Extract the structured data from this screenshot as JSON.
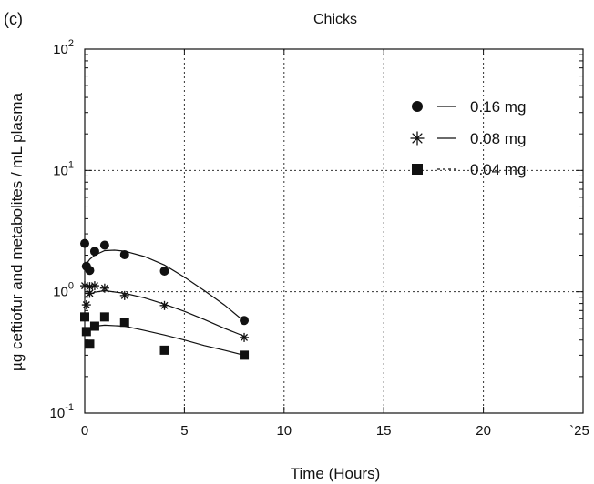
{
  "panel_label": "(c)",
  "chart_data": {
    "type": "scatter",
    "title": "Chicks",
    "xlabel": "Time (Hours)",
    "ylabel": "µg ceftiofur and metabolites / mL plasma",
    "xlim": [
      0,
      25
    ],
    "ylim": [
      0.1,
      100
    ],
    "yscale": "log",
    "grid": true,
    "grid_style": "dotted",
    "legend_position": "top-right",
    "x_ticks": [
      0,
      5,
      10,
      15,
      20,
      25
    ],
    "x_tick_labels": [
      "0",
      "5",
      "10",
      "15",
      "20",
      "`25"
    ],
    "y_ticks": [
      {
        "value": 0.1,
        "base": "10",
        "exp": "-1"
      },
      {
        "value": 1,
        "base": "10",
        "exp": "0"
      },
      {
        "value": 10,
        "base": "10",
        "exp": "1"
      },
      {
        "value": 100,
        "base": "10",
        "exp": "2"
      }
    ],
    "series": [
      {
        "name": "0.16 mg",
        "marker": "circle",
        "color": "#111111",
        "points": [
          [
            0,
            2.5
          ],
          [
            0.083,
            1.62
          ],
          [
            0.25,
            1.5
          ],
          [
            0.5,
            2.15
          ],
          [
            1,
            2.42
          ],
          [
            2,
            2.02
          ],
          [
            4,
            1.48
          ],
          [
            8,
            0.58
          ]
        ],
        "fit": [
          [
            0,
            1.62
          ],
          [
            0.25,
            1.85
          ],
          [
            0.5,
            2.0
          ],
          [
            1,
            2.18
          ],
          [
            1.5,
            2.2
          ],
          [
            2,
            2.16
          ],
          [
            3,
            1.95
          ],
          [
            4,
            1.66
          ],
          [
            5,
            1.32
          ],
          [
            6,
            1.02
          ],
          [
            7,
            0.78
          ],
          [
            8,
            0.57
          ]
        ]
      },
      {
        "name": "0.08 mg",
        "marker": "asterisk",
        "color": "#111111",
        "points": [
          [
            0,
            1.12
          ],
          [
            0.083,
            0.78
          ],
          [
            0.25,
            0.97
          ],
          [
            0.25,
            1.1
          ],
          [
            0.5,
            1.12
          ],
          [
            1,
            1.07
          ],
          [
            2,
            0.93
          ],
          [
            4,
            0.77
          ],
          [
            8,
            0.42
          ]
        ],
        "fit": [
          [
            0,
            0.9
          ],
          [
            0.25,
            0.95
          ],
          [
            0.5,
            0.99
          ],
          [
            1,
            1.02
          ],
          [
            2,
            0.97
          ],
          [
            3,
            0.89
          ],
          [
            4,
            0.79
          ],
          [
            5,
            0.69
          ],
          [
            6,
            0.59
          ],
          [
            7,
            0.5
          ],
          [
            8,
            0.43
          ]
        ]
      },
      {
        "name": "0.04 mg",
        "marker": "square",
        "color": "#111111",
        "points": [
          [
            0,
            0.62
          ],
          [
            0.083,
            0.47
          ],
          [
            0.25,
            0.37
          ],
          [
            0.5,
            0.52
          ],
          [
            1,
            0.62
          ],
          [
            2,
            0.56
          ],
          [
            4,
            0.33
          ],
          [
            8,
            0.3
          ]
        ],
        "fit": [
          [
            0,
            0.47
          ],
          [
            0.25,
            0.5
          ],
          [
            0.5,
            0.52
          ],
          [
            1,
            0.53
          ],
          [
            2,
            0.52
          ],
          [
            3,
            0.48
          ],
          [
            4,
            0.44
          ],
          [
            5,
            0.4
          ],
          [
            6,
            0.36
          ],
          [
            7,
            0.33
          ],
          [
            8,
            0.3
          ]
        ]
      }
    ]
  }
}
